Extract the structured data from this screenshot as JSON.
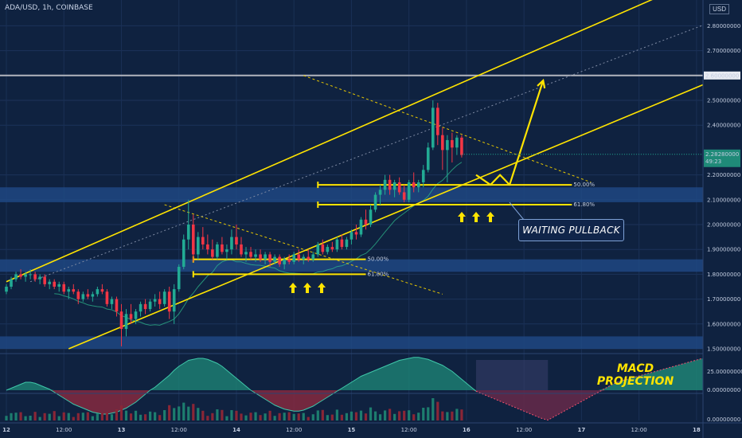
{
  "header": {
    "symbol": "ADA/USD, 1h, COINBASE",
    "currency": "USD"
  },
  "annotations": {
    "waiting": "WAITING PULLBACK",
    "macd_line1": "MACD",
    "macd_line2": "PROJECTION",
    "fib_upper_50": "50.00%",
    "fib_upper_618": "61.80%",
    "fib_lower_50": "50.00%",
    "fib_lower_618": "61.80%"
  },
  "price_axis": {
    "ticks": [
      "2.80000000",
      "2.70000000",
      "2.50000000",
      "2.40000000",
      "2.20000000",
      "2.10000000",
      "2.00000000",
      "1.90000000",
      "1.80000000",
      "1.70000000",
      "1.60000000",
      "1.50000000"
    ],
    "tick_values": [
      2.8,
      2.7,
      2.5,
      2.4,
      2.2,
      2.1,
      2.0,
      1.9,
      1.8,
      1.7,
      1.6,
      1.5
    ],
    "level_label": "2.60000000",
    "current_price": "2.28280000",
    "countdown": "49:23"
  },
  "macd_axis": {
    "ticks": [
      "25.00000000",
      "0.00000000"
    ]
  },
  "volume_axis": {
    "ticks": [
      "0.00000000"
    ]
  },
  "time_axis": {
    "labels": [
      "12",
      "12:00",
      "13",
      "12:00",
      "14",
      "12:00",
      "15",
      "12:00",
      "16",
      "12:00",
      "17",
      "12:00",
      "18"
    ],
    "label_hours": [
      0,
      12,
      24,
      36,
      48,
      60,
      72,
      84,
      96,
      108,
      120,
      132,
      144
    ]
  },
  "colors": {
    "up": "#22ab94",
    "down": "#f23645",
    "channel": "#ffe400",
    "zone": "#1f4a86",
    "level": "#b2b5be",
    "bg": "#0f2240"
  },
  "chart_data": {
    "type": "candlestick",
    "ylim": [
      1.5,
      2.85
    ],
    "channel_upper": [
      [
        0,
        1.77
      ],
      [
        140,
        2.95
      ]
    ],
    "channel_lower": [
      [
        13,
        1.5
      ],
      [
        150,
        2.6
      ]
    ],
    "resistance_level": 2.6,
    "zones": [
      [
        2.09,
        2.15
      ],
      [
        1.81,
        1.86
      ],
      [
        1.5,
        1.55
      ]
    ],
    "fib_levels": [
      {
        "label": "50.00%",
        "value": 2.16
      },
      {
        "label": "61.80%",
        "value": 2.08
      },
      {
        "label": "50.00%",
        "value": 1.86
      },
      {
        "label": "61.80%",
        "value": 1.8
      }
    ],
    "projection": [
      [
        98,
        2.2
      ],
      [
        101,
        2.16
      ],
      [
        103,
        2.2
      ],
      [
        105,
        2.16
      ],
      [
        112,
        2.58
      ]
    ],
    "candles": [
      {
        "t": 0,
        "o": 1.73,
        "h": 1.76,
        "l": 1.72,
        "c": 1.75
      },
      {
        "t": 1,
        "o": 1.75,
        "h": 1.79,
        "l": 1.74,
        "c": 1.78
      },
      {
        "t": 2,
        "o": 1.78,
        "h": 1.81,
        "l": 1.77,
        "c": 1.8
      },
      {
        "t": 3,
        "o": 1.8,
        "h": 1.82,
        "l": 1.78,
        "c": 1.79
      },
      {
        "t": 4,
        "o": 1.79,
        "h": 1.81,
        "l": 1.77,
        "c": 1.8
      },
      {
        "t": 5,
        "o": 1.8,
        "h": 1.82,
        "l": 1.78,
        "c": 1.8
      },
      {
        "t": 6,
        "o": 1.8,
        "h": 1.81,
        "l": 1.77,
        "c": 1.78
      },
      {
        "t": 7,
        "o": 1.78,
        "h": 1.8,
        "l": 1.76,
        "c": 1.79
      },
      {
        "t": 8,
        "o": 1.79,
        "h": 1.8,
        "l": 1.75,
        "c": 1.76
      },
      {
        "t": 9,
        "o": 1.76,
        "h": 1.78,
        "l": 1.74,
        "c": 1.77
      },
      {
        "t": 10,
        "o": 1.77,
        "h": 1.78,
        "l": 1.74,
        "c": 1.75
      },
      {
        "t": 11,
        "o": 1.75,
        "h": 1.77,
        "l": 1.73,
        "c": 1.76
      },
      {
        "t": 12,
        "o": 1.76,
        "h": 1.77,
        "l": 1.72,
        "c": 1.73
      },
      {
        "t": 13,
        "o": 1.73,
        "h": 1.75,
        "l": 1.7,
        "c": 1.74
      },
      {
        "t": 14,
        "o": 1.74,
        "h": 1.76,
        "l": 1.72,
        "c": 1.73
      },
      {
        "t": 15,
        "o": 1.73,
        "h": 1.74,
        "l": 1.68,
        "c": 1.7
      },
      {
        "t": 16,
        "o": 1.7,
        "h": 1.73,
        "l": 1.69,
        "c": 1.72
      },
      {
        "t": 17,
        "o": 1.72,
        "h": 1.74,
        "l": 1.7,
        "c": 1.71
      },
      {
        "t": 18,
        "o": 1.71,
        "h": 1.73,
        "l": 1.69,
        "c": 1.72
      },
      {
        "t": 19,
        "o": 1.72,
        "h": 1.75,
        "l": 1.71,
        "c": 1.74
      },
      {
        "t": 20,
        "o": 1.74,
        "h": 1.76,
        "l": 1.72,
        "c": 1.73
      },
      {
        "t": 21,
        "o": 1.73,
        "h": 1.74,
        "l": 1.67,
        "c": 1.68
      },
      {
        "t": 22,
        "o": 1.68,
        "h": 1.71,
        "l": 1.66,
        "c": 1.7
      },
      {
        "t": 23,
        "o": 1.7,
        "h": 1.71,
        "l": 1.63,
        "c": 1.65
      },
      {
        "t": 24,
        "o": 1.65,
        "h": 1.68,
        "l": 1.51,
        "c": 1.58
      },
      {
        "t": 25,
        "o": 1.58,
        "h": 1.66,
        "l": 1.55,
        "c": 1.64
      },
      {
        "t": 26,
        "o": 1.64,
        "h": 1.68,
        "l": 1.6,
        "c": 1.62
      },
      {
        "t": 27,
        "o": 1.62,
        "h": 1.66,
        "l": 1.6,
        "c": 1.65
      },
      {
        "t": 28,
        "o": 1.65,
        "h": 1.69,
        "l": 1.63,
        "c": 1.68
      },
      {
        "t": 29,
        "o": 1.68,
        "h": 1.7,
        "l": 1.64,
        "c": 1.66
      },
      {
        "t": 30,
        "o": 1.66,
        "h": 1.7,
        "l": 1.65,
        "c": 1.69
      },
      {
        "t": 31,
        "o": 1.69,
        "h": 1.72,
        "l": 1.67,
        "c": 1.7
      },
      {
        "t": 32,
        "o": 1.7,
        "h": 1.73,
        "l": 1.66,
        "c": 1.68
      },
      {
        "t": 33,
        "o": 1.68,
        "h": 1.74,
        "l": 1.67,
        "c": 1.73
      },
      {
        "t": 34,
        "o": 1.73,
        "h": 1.75,
        "l": 1.62,
        "c": 1.65
      },
      {
        "t": 35,
        "o": 1.65,
        "h": 1.76,
        "l": 1.6,
        "c": 1.74
      },
      {
        "t": 36,
        "o": 1.74,
        "h": 1.84,
        "l": 1.73,
        "c": 1.83
      },
      {
        "t": 37,
        "o": 1.83,
        "h": 1.96,
        "l": 1.82,
        "c": 1.94
      },
      {
        "t": 38,
        "o": 1.94,
        "h": 2.1,
        "l": 1.9,
        "c": 2.0
      },
      {
        "t": 39,
        "o": 2.0,
        "h": 2.04,
        "l": 1.85,
        "c": 1.88
      },
      {
        "t": 40,
        "o": 1.88,
        "h": 1.97,
        "l": 1.86,
        "c": 1.95
      },
      {
        "t": 41,
        "o": 1.95,
        "h": 1.99,
        "l": 1.9,
        "c": 1.92
      },
      {
        "t": 42,
        "o": 1.92,
        "h": 1.96,
        "l": 1.88,
        "c": 1.9
      },
      {
        "t": 43,
        "o": 1.9,
        "h": 1.94,
        "l": 1.86,
        "c": 1.87
      },
      {
        "t": 44,
        "o": 1.87,
        "h": 1.93,
        "l": 1.86,
        "c": 1.92
      },
      {
        "t": 45,
        "o": 1.92,
        "h": 1.95,
        "l": 1.88,
        "c": 1.89
      },
      {
        "t": 46,
        "o": 1.89,
        "h": 1.92,
        "l": 1.86,
        "c": 1.9
      },
      {
        "t": 47,
        "o": 1.9,
        "h": 1.98,
        "l": 1.88,
        "c": 1.95
      },
      {
        "t": 48,
        "o": 1.95,
        "h": 2.0,
        "l": 1.9,
        "c": 1.92
      },
      {
        "t": 49,
        "o": 1.92,
        "h": 1.95,
        "l": 1.87,
        "c": 1.88
      },
      {
        "t": 50,
        "o": 1.88,
        "h": 1.91,
        "l": 1.85,
        "c": 1.89
      },
      {
        "t": 51,
        "o": 1.89,
        "h": 1.91,
        "l": 1.86,
        "c": 1.87
      },
      {
        "t": 52,
        "o": 1.87,
        "h": 1.9,
        "l": 1.85,
        "c": 1.88
      },
      {
        "t": 53,
        "o": 1.88,
        "h": 1.9,
        "l": 1.85,
        "c": 1.86
      },
      {
        "t": 54,
        "o": 1.86,
        "h": 1.89,
        "l": 1.84,
        "c": 1.88
      },
      {
        "t": 55,
        "o": 1.88,
        "h": 1.89,
        "l": 1.83,
        "c": 1.85
      },
      {
        "t": 56,
        "o": 1.85,
        "h": 1.88,
        "l": 1.84,
        "c": 1.87
      },
      {
        "t": 57,
        "o": 1.87,
        "h": 1.88,
        "l": 1.83,
        "c": 1.84
      },
      {
        "t": 58,
        "o": 1.84,
        "h": 1.87,
        "l": 1.82,
        "c": 1.86
      },
      {
        "t": 59,
        "o": 1.86,
        "h": 1.88,
        "l": 1.84,
        "c": 1.85
      },
      {
        "t": 60,
        "o": 1.85,
        "h": 1.89,
        "l": 1.84,
        "c": 1.88
      },
      {
        "t": 61,
        "o": 1.88,
        "h": 1.9,
        "l": 1.85,
        "c": 1.86
      },
      {
        "t": 62,
        "o": 1.86,
        "h": 1.88,
        "l": 1.84,
        "c": 1.87
      },
      {
        "t": 63,
        "o": 1.87,
        "h": 1.9,
        "l": 1.85,
        "c": 1.86
      },
      {
        "t": 64,
        "o": 1.86,
        "h": 1.89,
        "l": 1.85,
        "c": 1.88
      },
      {
        "t": 65,
        "o": 1.88,
        "h": 1.93,
        "l": 1.87,
        "c": 1.92
      },
      {
        "t": 66,
        "o": 1.92,
        "h": 1.94,
        "l": 1.88,
        "c": 1.89
      },
      {
        "t": 67,
        "o": 1.89,
        "h": 1.92,
        "l": 1.88,
        "c": 1.91
      },
      {
        "t": 68,
        "o": 1.91,
        "h": 1.93,
        "l": 1.89,
        "c": 1.9
      },
      {
        "t": 69,
        "o": 1.9,
        "h": 1.95,
        "l": 1.89,
        "c": 1.94
      },
      {
        "t": 70,
        "o": 1.94,
        "h": 1.96,
        "l": 1.9,
        "c": 1.91
      },
      {
        "t": 71,
        "o": 1.91,
        "h": 1.95,
        "l": 1.9,
        "c": 1.94
      },
      {
        "t": 72,
        "o": 1.94,
        "h": 1.98,
        "l": 1.92,
        "c": 1.97
      },
      {
        "t": 73,
        "o": 1.97,
        "h": 2.0,
        "l": 1.94,
        "c": 1.96
      },
      {
        "t": 74,
        "o": 1.96,
        "h": 2.03,
        "l": 1.95,
        "c": 2.02
      },
      {
        "t": 75,
        "o": 2.02,
        "h": 2.06,
        "l": 1.98,
        "c": 2.0
      },
      {
        "t": 76,
        "o": 2.0,
        "h": 2.08,
        "l": 1.99,
        "c": 2.06
      },
      {
        "t": 77,
        "o": 2.06,
        "h": 2.13,
        "l": 2.05,
        "c": 2.12
      },
      {
        "t": 78,
        "o": 2.12,
        "h": 2.16,
        "l": 2.08,
        "c": 2.14
      },
      {
        "t": 79,
        "o": 2.14,
        "h": 2.2,
        "l": 2.12,
        "c": 2.18
      },
      {
        "t": 80,
        "o": 2.18,
        "h": 2.2,
        "l": 2.12,
        "c": 2.14
      },
      {
        "t": 81,
        "o": 2.14,
        "h": 2.18,
        "l": 2.11,
        "c": 2.17
      },
      {
        "t": 82,
        "o": 2.17,
        "h": 2.19,
        "l": 2.12,
        "c": 2.13
      },
      {
        "t": 83,
        "o": 2.13,
        "h": 2.16,
        "l": 2.09,
        "c": 2.1
      },
      {
        "t": 84,
        "o": 2.1,
        "h": 2.18,
        "l": 2.09,
        "c": 2.17
      },
      {
        "t": 85,
        "o": 2.17,
        "h": 2.21,
        "l": 2.13,
        "c": 2.15
      },
      {
        "t": 86,
        "o": 2.15,
        "h": 2.18,
        "l": 2.13,
        "c": 2.17
      },
      {
        "t": 87,
        "o": 2.17,
        "h": 2.24,
        "l": 2.15,
        "c": 2.22
      },
      {
        "t": 88,
        "o": 2.22,
        "h": 2.33,
        "l": 2.21,
        "c": 2.31
      },
      {
        "t": 89,
        "o": 2.31,
        "h": 2.5,
        "l": 2.3,
        "c": 2.47
      },
      {
        "t": 90,
        "o": 2.47,
        "h": 2.49,
        "l": 2.32,
        "c": 2.36
      },
      {
        "t": 91,
        "o": 2.36,
        "h": 2.39,
        "l": 2.22,
        "c": 2.3
      },
      {
        "t": 92,
        "o": 2.3,
        "h": 2.36,
        "l": 2.17,
        "c": 2.34
      },
      {
        "t": 93,
        "o": 2.34,
        "h": 2.37,
        "l": 2.25,
        "c": 2.31
      },
      {
        "t": 94,
        "o": 2.31,
        "h": 2.36,
        "l": 2.28,
        "c": 2.35
      },
      {
        "t": 95,
        "o": 2.35,
        "h": 2.36,
        "l": 2.27,
        "c": 2.28
      }
    ],
    "macd_histogram": [
      0,
      2,
      4,
      6,
      8,
      8,
      7,
      5,
      3,
      1,
      -2,
      -5,
      -8,
      -11,
      -14,
      -16,
      -18,
      -20,
      -22,
      -23,
      -24,
      -24,
      -23,
      -22,
      -20,
      -18,
      -15,
      -12,
      -8,
      -4,
      0,
      3,
      7,
      11,
      15,
      20,
      24,
      27,
      30,
      31,
      32,
      32,
      31,
      29,
      27,
      24,
      20,
      16,
      12,
      8,
      4,
      0,
      -3,
      -6,
      -9,
      -12,
      -15,
      -17,
      -19,
      -20,
      -21,
      -21,
      -20,
      -18,
      -16,
      -13,
      -10,
      -7,
      -4,
      -1,
      2,
      5,
      8,
      11,
      14,
      16,
      18,
      20,
      22,
      24,
      26,
      28,
      30,
      31,
      32,
      33,
      33,
      32,
      31,
      29,
      27,
      25,
      22,
      19,
      15,
      11,
      7,
      3,
      -1
    ],
    "macd_projection": [
      -1,
      -4,
      -7,
      -10,
      -13,
      -16,
      -19,
      -22,
      -25,
      -28,
      -30,
      -26,
      -22,
      -18,
      -14,
      -10,
      -6,
      -2,
      2,
      6,
      9,
      11,
      13,
      15,
      17,
      19,
      21,
      23,
      25,
      27,
      29,
      31,
      33,
      35,
      37
    ]
  }
}
